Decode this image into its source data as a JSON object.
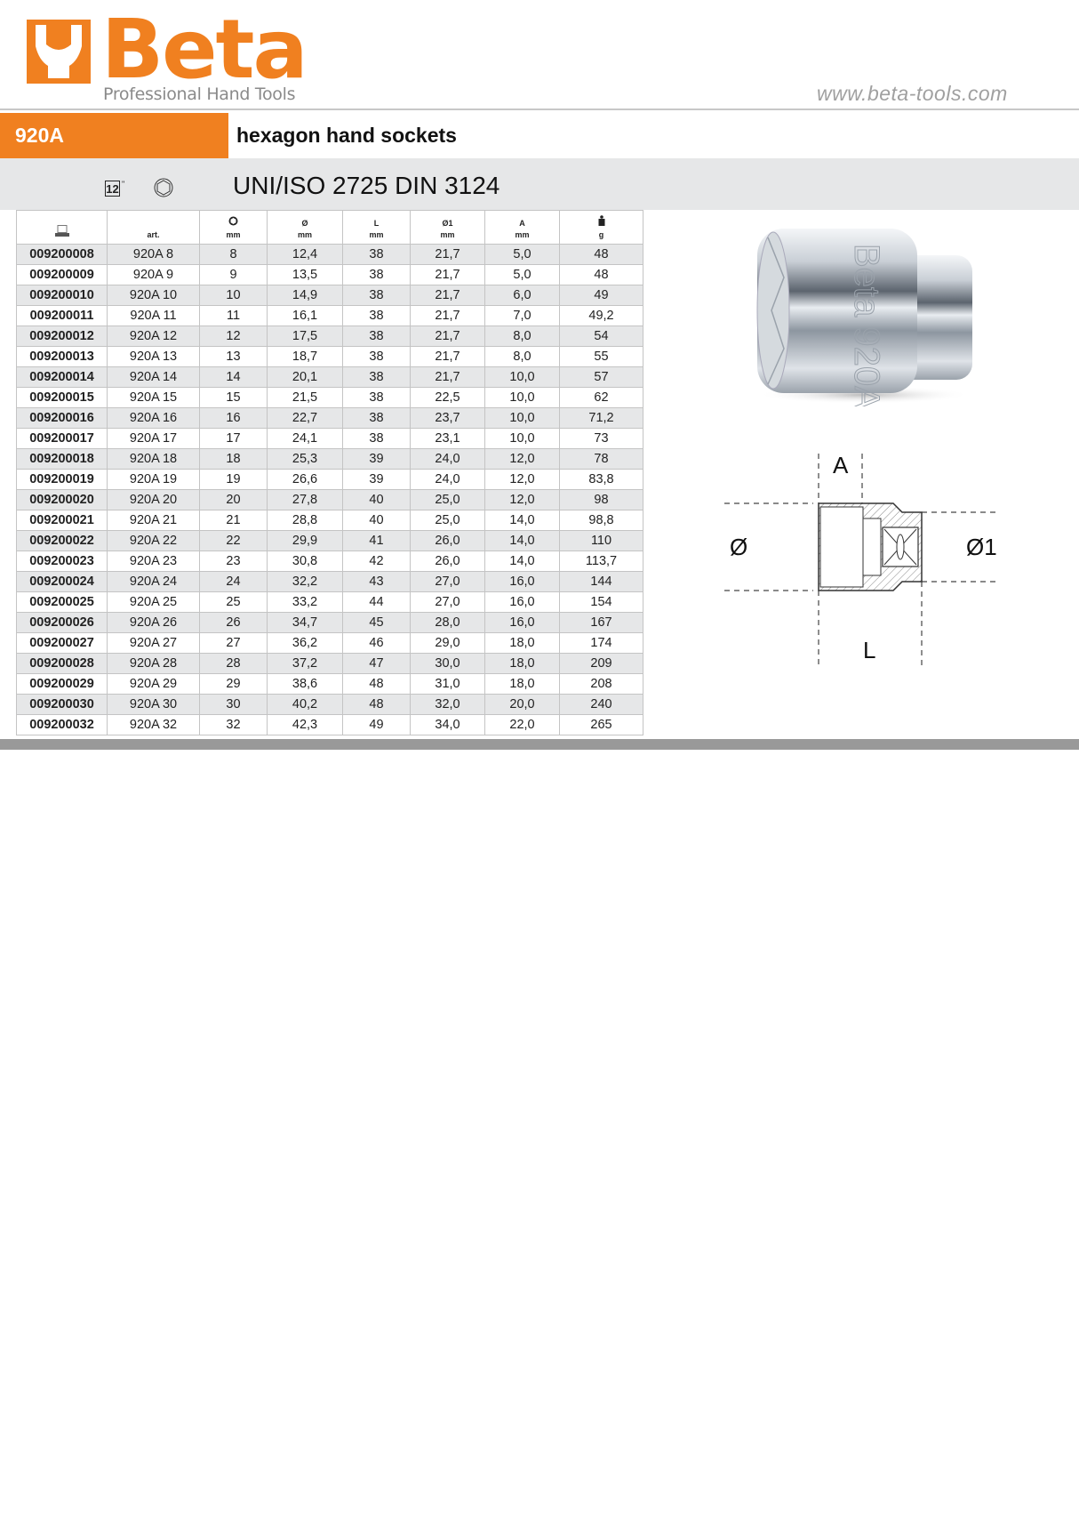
{
  "brand": {
    "logo_word": "Beta",
    "tagline": "Professional Hand Tools",
    "url": "www.beta-tools.com",
    "color": "#f08020"
  },
  "product": {
    "code": "920A",
    "title": "hexagon hand sockets",
    "drive": "1/2\"",
    "standard": "UNI/ISO 2725 DIN 3124"
  },
  "table": {
    "headers": [
      {
        "icon": "barcode-icon",
        "label": "",
        "unit": ""
      },
      {
        "icon": "",
        "label": "art.",
        "unit": ""
      },
      {
        "icon": "hex-socket-icon",
        "label": "",
        "unit": "mm"
      },
      {
        "icon": "",
        "label": "Ø",
        "unit": "mm"
      },
      {
        "icon": "",
        "label": "L",
        "unit": "mm"
      },
      {
        "icon": "",
        "label": "Ø1",
        "unit": "mm"
      },
      {
        "icon": "",
        "label": "A",
        "unit": "mm"
      },
      {
        "icon": "weight-icon",
        "label": "",
        "unit": "g"
      }
    ],
    "rows": [
      [
        "009200008",
        "920A 8",
        "8",
        "12,4",
        "38",
        "21,7",
        "5,0",
        "48"
      ],
      [
        "009200009",
        "920A 9",
        "9",
        "13,5",
        "38",
        "21,7",
        "5,0",
        "48"
      ],
      [
        "009200010",
        "920A 10",
        "10",
        "14,9",
        "38",
        "21,7",
        "6,0",
        "49"
      ],
      [
        "009200011",
        "920A 11",
        "11",
        "16,1",
        "38",
        "21,7",
        "7,0",
        "49,2"
      ],
      [
        "009200012",
        "920A 12",
        "12",
        "17,5",
        "38",
        "21,7",
        "8,0",
        "54"
      ],
      [
        "009200013",
        "920A 13",
        "13",
        "18,7",
        "38",
        "21,7",
        "8,0",
        "55"
      ],
      [
        "009200014",
        "920A 14",
        "14",
        "20,1",
        "38",
        "21,7",
        "10,0",
        "57"
      ],
      [
        "009200015",
        "920A 15",
        "15",
        "21,5",
        "38",
        "22,5",
        "10,0",
        "62"
      ],
      [
        "009200016",
        "920A 16",
        "16",
        "22,7",
        "38",
        "23,7",
        "10,0",
        "71,2"
      ],
      [
        "009200017",
        "920A 17",
        "17",
        "24,1",
        "38",
        "23,1",
        "10,0",
        "73"
      ],
      [
        "009200018",
        "920A 18",
        "18",
        "25,3",
        "39",
        "24,0",
        "12,0",
        "78"
      ],
      [
        "009200019",
        "920A 19",
        "19",
        "26,6",
        "39",
        "24,0",
        "12,0",
        "83,8"
      ],
      [
        "009200020",
        "920A 20",
        "20",
        "27,8",
        "40",
        "25,0",
        "12,0",
        "98"
      ],
      [
        "009200021",
        "920A 21",
        "21",
        "28,8",
        "40",
        "25,0",
        "14,0",
        "98,8"
      ],
      [
        "009200022",
        "920A 22",
        "22",
        "29,9",
        "41",
        "26,0",
        "14,0",
        "110"
      ],
      [
        "009200023",
        "920A 23",
        "23",
        "30,8",
        "42",
        "26,0",
        "14,0",
        "113,7"
      ],
      [
        "009200024",
        "920A 24",
        "24",
        "32,2",
        "43",
        "27,0",
        "16,0",
        "144"
      ],
      [
        "009200025",
        "920A 25",
        "25",
        "33,2",
        "44",
        "27,0",
        "16,0",
        "154"
      ],
      [
        "009200026",
        "920A 26",
        "26",
        "34,7",
        "45",
        "28,0",
        "16,0",
        "167"
      ],
      [
        "009200027",
        "920A 27",
        "27",
        "36,2",
        "46",
        "29,0",
        "18,0",
        "174"
      ],
      [
        "009200028",
        "920A 28",
        "28",
        "37,2",
        "47",
        "30,0",
        "18,0",
        "209"
      ],
      [
        "009200029",
        "920A 29",
        "29",
        "38,6",
        "48",
        "31,0",
        "18,0",
        "208"
      ],
      [
        "009200030",
        "920A 30",
        "30",
        "40,2",
        "48",
        "32,0",
        "20,0",
        "240"
      ],
      [
        "009200032",
        "920A 32",
        "32",
        "42,3",
        "49",
        "34,0",
        "22,0",
        "265"
      ]
    ]
  },
  "photo": {
    "engraving": "Beta 920A"
  },
  "diagram": {
    "labels": {
      "a": "A",
      "d": "Ø",
      "d1": "Ø1",
      "l": "L"
    }
  }
}
